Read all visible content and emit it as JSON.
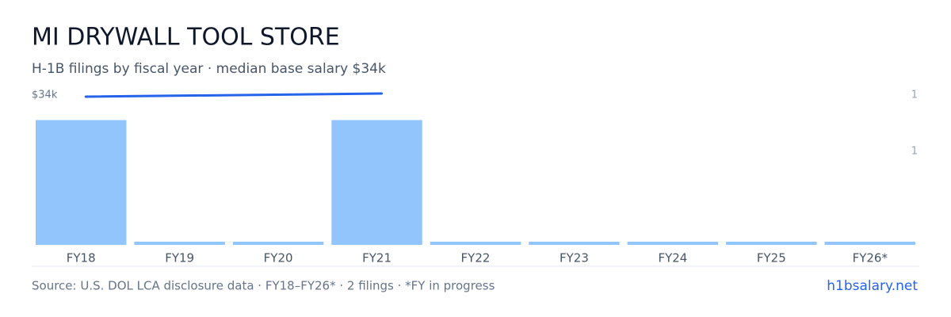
{
  "chart_data": {
    "type": "bar",
    "title": "MI DRYWALL TOOL STORE",
    "subtitle": "H-1B filings by fiscal year · median base salary $34k",
    "categories": [
      "FY18",
      "FY19",
      "FY20",
      "FY21",
      "FY22",
      "FY23",
      "FY24",
      "FY25",
      "FY26*"
    ],
    "values": [
      1,
      0,
      0,
      1,
      0,
      0,
      0,
      0,
      0
    ],
    "color": "#93c5fd",
    "ylim": [
      0,
      1.2
    ],
    "yticks": [
      {
        "value": 0.75,
        "label": "1"
      },
      {
        "value": 1.2,
        "label": "1"
      }
    ],
    "line": {
      "name": "median base salary",
      "color": "#2563eb",
      "axis": "y2",
      "x": [
        "FY18",
        "FY21"
      ],
      "values": [
        33900,
        34100
      ]
    },
    "y2lim": [
      33000,
      35000
    ],
    "y2ticks": [
      {
        "value": 34000,
        "label": "$34k"
      }
    ],
    "source": "Source: U.S. DOL LCA disclosure data · FY18–FY26* · 2 filings · *FY in progress",
    "link": "h1bsalary.net"
  }
}
